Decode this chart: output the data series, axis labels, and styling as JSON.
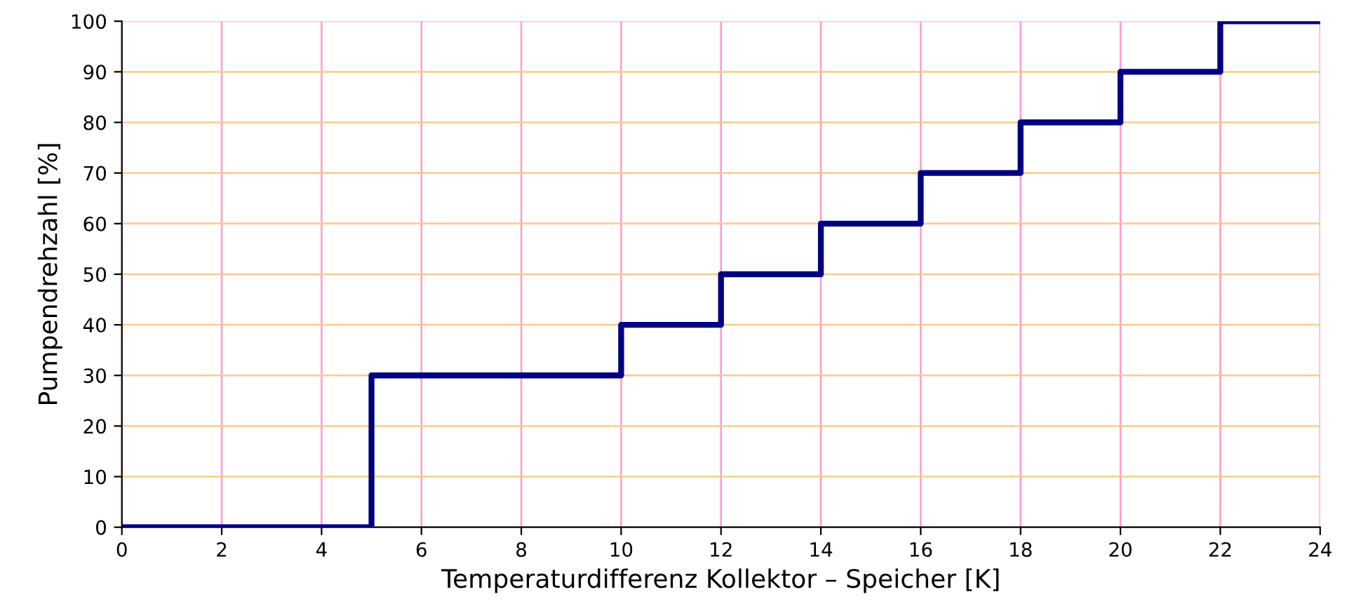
{
  "chart_data": {
    "type": "step",
    "xlabel": "Temperaturdifferenz Kollektor – Speicher [K]",
    "ylabel": "Pumpendrehzahl [%]",
    "x": [
      0,
      5,
      10,
      12,
      14,
      16,
      18,
      20,
      22,
      24
    ],
    "series": [
      {
        "color": "#000080",
        "values": [
          0,
          30,
          40,
          50,
          60,
          70,
          80,
          90,
          100,
          100
        ]
      }
    ],
    "xlim": [
      0,
      24
    ],
    "xticks": [
      0,
      2,
      4,
      6,
      8,
      10,
      12,
      14,
      16,
      18,
      20,
      22,
      24
    ],
    "ylim": [
      0,
      100
    ],
    "yticks": [
      0,
      10,
      20,
      30,
      40,
      50,
      60,
      70,
      80,
      90,
      100
    ],
    "grid": true,
    "legend": false,
    "marker": "none",
    "line_style": "solid"
  }
}
